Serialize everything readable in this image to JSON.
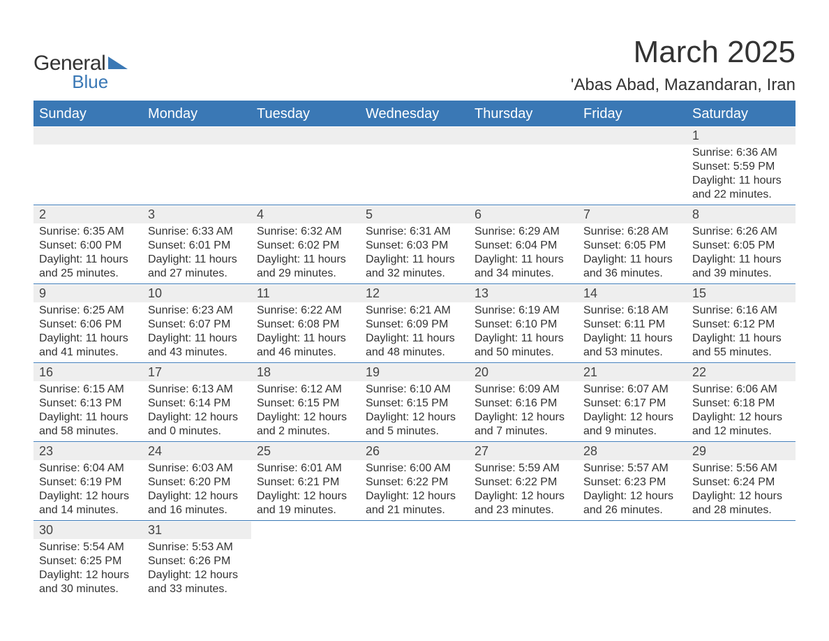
{
  "logo": {
    "word1": "General",
    "word2": "Blue",
    "accent_color": "#3a78b5"
  },
  "title": "March 2025",
  "location": "'Abas Abad, Mazandaran, Iran",
  "colors": {
    "header_bg": "#3a78b5",
    "header_text": "#ffffff",
    "daynum_bg": "#eeeeee",
    "text": "#333333",
    "row_border": "#3a78b5",
    "background": "#ffffff"
  },
  "typography": {
    "title_fontsize": 44,
    "location_fontsize": 24,
    "header_fontsize": 20,
    "daynum_fontsize": 18,
    "body_fontsize": 16
  },
  "day_headers": [
    "Sunday",
    "Monday",
    "Tuesday",
    "Wednesday",
    "Thursday",
    "Friday",
    "Saturday"
  ],
  "weeks": [
    [
      null,
      null,
      null,
      null,
      null,
      null,
      {
        "day": "1",
        "sunrise": "Sunrise: 6:36 AM",
        "sunset": "Sunset: 5:59 PM",
        "daylight1": "Daylight: 11 hours",
        "daylight2": "and 22 minutes."
      }
    ],
    [
      {
        "day": "2",
        "sunrise": "Sunrise: 6:35 AM",
        "sunset": "Sunset: 6:00 PM",
        "daylight1": "Daylight: 11 hours",
        "daylight2": "and 25 minutes."
      },
      {
        "day": "3",
        "sunrise": "Sunrise: 6:33 AM",
        "sunset": "Sunset: 6:01 PM",
        "daylight1": "Daylight: 11 hours",
        "daylight2": "and 27 minutes."
      },
      {
        "day": "4",
        "sunrise": "Sunrise: 6:32 AM",
        "sunset": "Sunset: 6:02 PM",
        "daylight1": "Daylight: 11 hours",
        "daylight2": "and 29 minutes."
      },
      {
        "day": "5",
        "sunrise": "Sunrise: 6:31 AM",
        "sunset": "Sunset: 6:03 PM",
        "daylight1": "Daylight: 11 hours",
        "daylight2": "and 32 minutes."
      },
      {
        "day": "6",
        "sunrise": "Sunrise: 6:29 AM",
        "sunset": "Sunset: 6:04 PM",
        "daylight1": "Daylight: 11 hours",
        "daylight2": "and 34 minutes."
      },
      {
        "day": "7",
        "sunrise": "Sunrise: 6:28 AM",
        "sunset": "Sunset: 6:05 PM",
        "daylight1": "Daylight: 11 hours",
        "daylight2": "and 36 minutes."
      },
      {
        "day": "8",
        "sunrise": "Sunrise: 6:26 AM",
        "sunset": "Sunset: 6:05 PM",
        "daylight1": "Daylight: 11 hours",
        "daylight2": "and 39 minutes."
      }
    ],
    [
      {
        "day": "9",
        "sunrise": "Sunrise: 6:25 AM",
        "sunset": "Sunset: 6:06 PM",
        "daylight1": "Daylight: 11 hours",
        "daylight2": "and 41 minutes."
      },
      {
        "day": "10",
        "sunrise": "Sunrise: 6:23 AM",
        "sunset": "Sunset: 6:07 PM",
        "daylight1": "Daylight: 11 hours",
        "daylight2": "and 43 minutes."
      },
      {
        "day": "11",
        "sunrise": "Sunrise: 6:22 AM",
        "sunset": "Sunset: 6:08 PM",
        "daylight1": "Daylight: 11 hours",
        "daylight2": "and 46 minutes."
      },
      {
        "day": "12",
        "sunrise": "Sunrise: 6:21 AM",
        "sunset": "Sunset: 6:09 PM",
        "daylight1": "Daylight: 11 hours",
        "daylight2": "and 48 minutes."
      },
      {
        "day": "13",
        "sunrise": "Sunrise: 6:19 AM",
        "sunset": "Sunset: 6:10 PM",
        "daylight1": "Daylight: 11 hours",
        "daylight2": "and 50 minutes."
      },
      {
        "day": "14",
        "sunrise": "Sunrise: 6:18 AM",
        "sunset": "Sunset: 6:11 PM",
        "daylight1": "Daylight: 11 hours",
        "daylight2": "and 53 minutes."
      },
      {
        "day": "15",
        "sunrise": "Sunrise: 6:16 AM",
        "sunset": "Sunset: 6:12 PM",
        "daylight1": "Daylight: 11 hours",
        "daylight2": "and 55 minutes."
      }
    ],
    [
      {
        "day": "16",
        "sunrise": "Sunrise: 6:15 AM",
        "sunset": "Sunset: 6:13 PM",
        "daylight1": "Daylight: 11 hours",
        "daylight2": "and 58 minutes."
      },
      {
        "day": "17",
        "sunrise": "Sunrise: 6:13 AM",
        "sunset": "Sunset: 6:14 PM",
        "daylight1": "Daylight: 12 hours",
        "daylight2": "and 0 minutes."
      },
      {
        "day": "18",
        "sunrise": "Sunrise: 6:12 AM",
        "sunset": "Sunset: 6:15 PM",
        "daylight1": "Daylight: 12 hours",
        "daylight2": "and 2 minutes."
      },
      {
        "day": "19",
        "sunrise": "Sunrise: 6:10 AM",
        "sunset": "Sunset: 6:15 PM",
        "daylight1": "Daylight: 12 hours",
        "daylight2": "and 5 minutes."
      },
      {
        "day": "20",
        "sunrise": "Sunrise: 6:09 AM",
        "sunset": "Sunset: 6:16 PM",
        "daylight1": "Daylight: 12 hours",
        "daylight2": "and 7 minutes."
      },
      {
        "day": "21",
        "sunrise": "Sunrise: 6:07 AM",
        "sunset": "Sunset: 6:17 PM",
        "daylight1": "Daylight: 12 hours",
        "daylight2": "and 9 minutes."
      },
      {
        "day": "22",
        "sunrise": "Sunrise: 6:06 AM",
        "sunset": "Sunset: 6:18 PM",
        "daylight1": "Daylight: 12 hours",
        "daylight2": "and 12 minutes."
      }
    ],
    [
      {
        "day": "23",
        "sunrise": "Sunrise: 6:04 AM",
        "sunset": "Sunset: 6:19 PM",
        "daylight1": "Daylight: 12 hours",
        "daylight2": "and 14 minutes."
      },
      {
        "day": "24",
        "sunrise": "Sunrise: 6:03 AM",
        "sunset": "Sunset: 6:20 PM",
        "daylight1": "Daylight: 12 hours",
        "daylight2": "and 16 minutes."
      },
      {
        "day": "25",
        "sunrise": "Sunrise: 6:01 AM",
        "sunset": "Sunset: 6:21 PM",
        "daylight1": "Daylight: 12 hours",
        "daylight2": "and 19 minutes."
      },
      {
        "day": "26",
        "sunrise": "Sunrise: 6:00 AM",
        "sunset": "Sunset: 6:22 PM",
        "daylight1": "Daylight: 12 hours",
        "daylight2": "and 21 minutes."
      },
      {
        "day": "27",
        "sunrise": "Sunrise: 5:59 AM",
        "sunset": "Sunset: 6:22 PM",
        "daylight1": "Daylight: 12 hours",
        "daylight2": "and 23 minutes."
      },
      {
        "day": "28",
        "sunrise": "Sunrise: 5:57 AM",
        "sunset": "Sunset: 6:23 PM",
        "daylight1": "Daylight: 12 hours",
        "daylight2": "and 26 minutes."
      },
      {
        "day": "29",
        "sunrise": "Sunrise: 5:56 AM",
        "sunset": "Sunset: 6:24 PM",
        "daylight1": "Daylight: 12 hours",
        "daylight2": "and 28 minutes."
      }
    ],
    [
      {
        "day": "30",
        "sunrise": "Sunrise: 5:54 AM",
        "sunset": "Sunset: 6:25 PM",
        "daylight1": "Daylight: 12 hours",
        "daylight2": "and 30 minutes."
      },
      {
        "day": "31",
        "sunrise": "Sunrise: 5:53 AM",
        "sunset": "Sunset: 6:26 PM",
        "daylight1": "Daylight: 12 hours",
        "daylight2": "and 33 minutes."
      },
      null,
      null,
      null,
      null,
      null
    ]
  ]
}
